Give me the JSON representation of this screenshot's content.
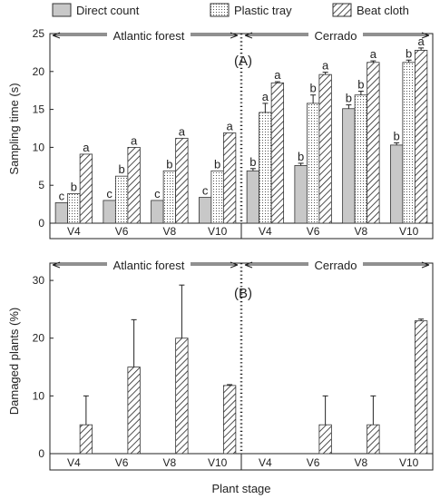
{
  "legend": [
    {
      "label": "Direct count",
      "pattern": "solid-gray"
    },
    {
      "label": "Plastic tray",
      "pattern": "dots"
    },
    {
      "label": "Beat cloth",
      "pattern": "diagonal-hatch"
    }
  ],
  "colors": {
    "direct_fill": "#c8c8c8",
    "axis": "#222222",
    "bar_stroke": "#333333"
  },
  "xlabel": "Plant stage",
  "chart_data": [
    {
      "type": "bar",
      "panel_label": "(A)",
      "ylabel": "Sampling time (s)",
      "ylim": [
        0,
        25
      ],
      "yticks": [
        0,
        5,
        10,
        15,
        20,
        25
      ],
      "regions": [
        "Atlantic forest",
        "Cerrado"
      ],
      "categories": [
        "V4",
        "V6",
        "V8",
        "V10",
        "V4",
        "V6",
        "V8",
        "V10"
      ],
      "series": [
        {
          "name": "Direct count",
          "values": [
            2.7,
            3.0,
            3.0,
            3.4,
            6.9,
            7.6,
            15.1,
            10.3
          ],
          "errors": [
            0,
            0,
            0,
            0,
            0.3,
            0.3,
            0.5,
            0.3
          ],
          "letters": [
            "c",
            "c",
            "c",
            "c",
            "b",
            "b",
            "b",
            "b"
          ]
        },
        {
          "name": "Plastic tray",
          "values": [
            3.9,
            6.2,
            6.9,
            6.9,
            14.6,
            15.8,
            16.9,
            21.2
          ],
          "errors": [
            0,
            0,
            0,
            0,
            1.2,
            1.1,
            0.5,
            0.3
          ],
          "letters": [
            "b",
            "b",
            "b",
            "b",
            "a",
            "b",
            "b",
            "b"
          ]
        },
        {
          "name": "Beat cloth",
          "values": [
            9.1,
            10.0,
            11.2,
            11.9,
            18.5,
            19.6,
            21.2,
            22.8
          ],
          "errors": [
            0,
            0,
            0,
            0,
            0.15,
            0.3,
            0.2,
            0.3
          ],
          "letters": [
            "a",
            "a",
            "a",
            "a",
            "a",
            "a",
            "a",
            "a"
          ]
        }
      ]
    },
    {
      "type": "bar",
      "panel_label": "(B)",
      "ylabel": "Damaged plants (%)",
      "ylim": [
        0,
        33
      ],
      "yticks": [
        0,
        10,
        20,
        30
      ],
      "regions": [
        "Atlantic forest",
        "Cerrado"
      ],
      "categories": [
        "V4",
        "V6",
        "V8",
        "V10",
        "V4",
        "V6",
        "V8",
        "V10"
      ],
      "series": [
        {
          "name": "Beat cloth",
          "values": [
            5,
            15,
            20,
            11.8,
            0,
            5,
            5,
            23
          ],
          "errors": [
            5,
            8.2,
            9.2,
            0.15,
            0,
            5,
            5,
            0.3
          ]
        }
      ]
    }
  ]
}
